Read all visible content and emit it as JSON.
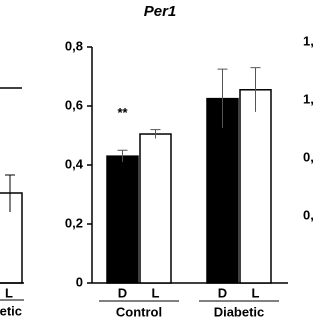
{
  "chart_data": {
    "type": "bar",
    "title": "Per1",
    "categories": [
      "Control",
      "Diabetic"
    ],
    "series": [
      {
        "name": "D",
        "color": "#000000",
        "values": [
          0.43,
          0.625
        ],
        "errors": [
          0.02,
          0.1
        ]
      },
      {
        "name": "L",
        "color": "#ffffff",
        "values": [
          0.505,
          0.655
        ],
        "errors": [
          0.015,
          0.075
        ]
      }
    ],
    "annotations": [
      {
        "text": "**",
        "category": 0
      }
    ],
    "ylim": [
      0,
      0.8
    ],
    "yticks": [
      0,
      {
        "value": 0.2,
        "label": "0,2"
      },
      {
        "value": 0.4,
        "label": "0,4"
      },
      {
        "value": 0.6,
        "label": "0,6"
      },
      {
        "value": 0.8,
        "label": "0,8"
      }
    ],
    "grid": false
  },
  "fragments": {
    "left_labels": [
      "L",
      "Diabetic"
    ],
    "right_tick_fragments": [
      "1,",
      "1,",
      "0,",
      "0,"
    ]
  }
}
